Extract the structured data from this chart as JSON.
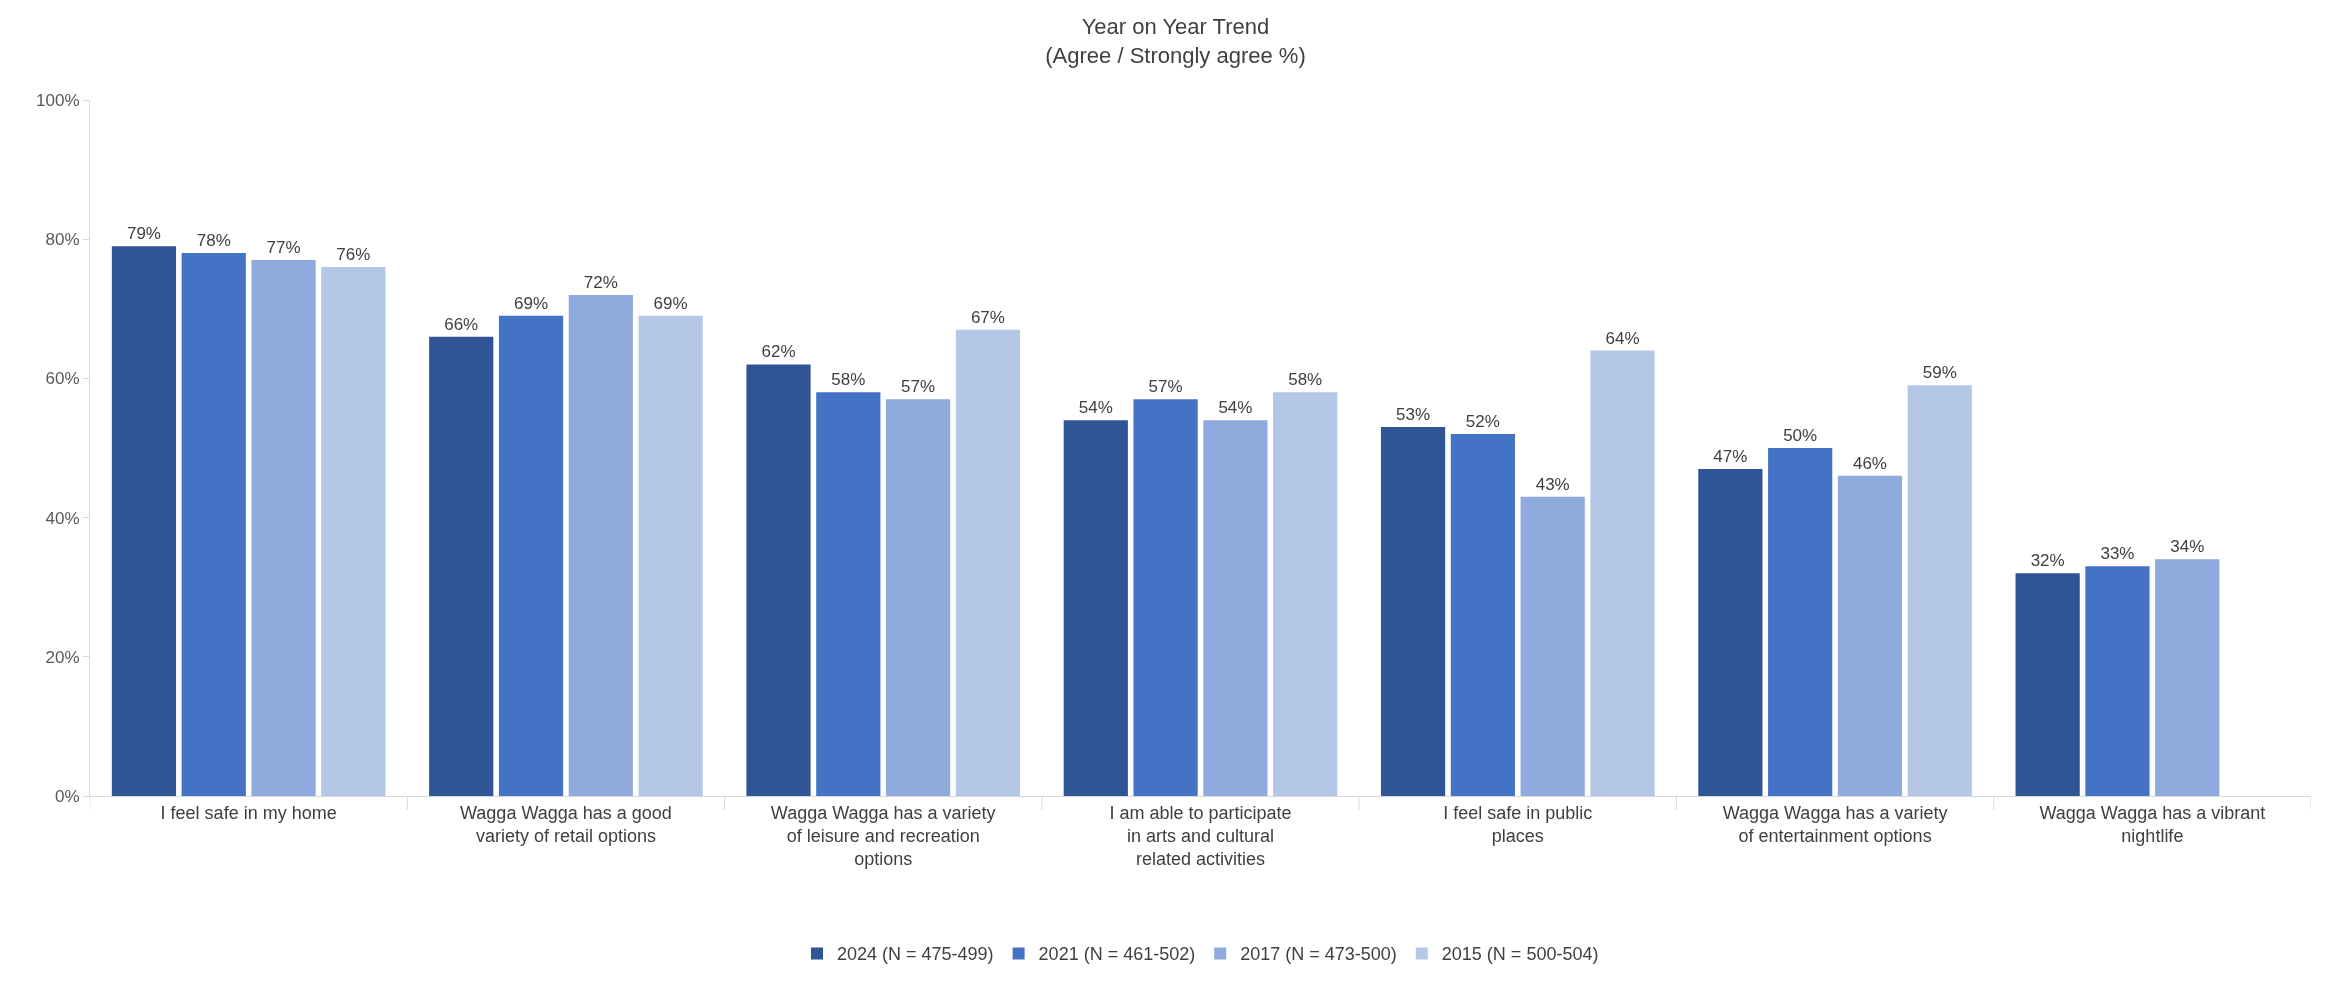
{
  "chart_data": {
    "type": "bar",
    "title": "Year on Year Trend\n(Agree / Strongly agree %)",
    "categories": [
      "I feel safe in my home",
      "Wagga Wagga has a good variety of retail options",
      "Wagga Wagga has a variety of leisure and recreation options",
      "I am able to participate in arts and cultural related activities",
      "I feel safe in public places",
      "Wagga Wagga has a variety of entertainment options",
      "Wagga Wagga has a vibrant nightlife"
    ],
    "series": [
      {
        "name": "2024 (N = 475-499)",
        "color": "#2f5597",
        "values": [
          79,
          66,
          62,
          54,
          53,
          47,
          32
        ],
        "value_labels": [
          "79%",
          "66%",
          "62%",
          "54%",
          "53%",
          "47%",
          "32%"
        ]
      },
      {
        "name": "2021 (N = 461-502)",
        "color": "#4472c4",
        "values": [
          78,
          69,
          58,
          57,
          52,
          50,
          33
        ],
        "value_labels": [
          "78%",
          "69%",
          "58%",
          "57%",
          "52%",
          "50%",
          "33%"
        ]
      },
      {
        "name": "2017 (N = 473-500)",
        "color": "#8faadc",
        "values": [
          77,
          72,
          57,
          54,
          43,
          46,
          34
        ],
        "value_labels": [
          "77%",
          "72%",
          "57%",
          "54%",
          "43%",
          "46%",
          "34%"
        ]
      },
      {
        "name": "2015 (N = 500-504)",
        "color": "#b4c7e7",
        "values": [
          76,
          69,
          67,
          58,
          64,
          59,
          null
        ],
        "value_labels": [
          "76%",
          "69%",
          "67%",
          "58%",
          "64%",
          "59%",
          null
        ]
      }
    ],
    "ylim": [
      0,
      100
    ],
    "yticks": [
      {
        "value": 0,
        "label": "0%"
      },
      {
        "value": 20,
        "label": "20%"
      },
      {
        "value": 40,
        "label": "40%"
      },
      {
        "value": 60,
        "label": "60%"
      },
      {
        "value": 80,
        "label": "80%"
      },
      {
        "value": 100,
        "label": "100%"
      }
    ],
    "grid": false,
    "legend": "bottom"
  }
}
